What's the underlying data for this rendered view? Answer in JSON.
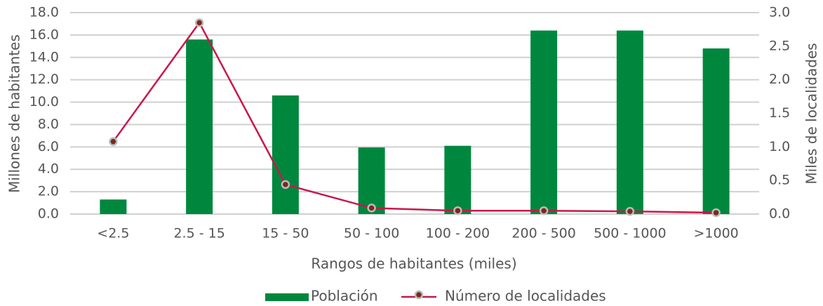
{
  "chart_data": {
    "type": "bar_line",
    "categories": [
      "<2.5",
      "2.5 - 15",
      "15 - 50",
      "50 - 100",
      "100 - 200",
      "200 - 500",
      "500 - 1000",
      ">1000"
    ],
    "series": [
      {
        "name": "Población",
        "color": "#00873e",
        "type": "bar",
        "values": [
          1.3,
          15.6,
          10.6,
          5.95,
          6.1,
          16.4,
          16.4,
          14.8
        ]
      },
      {
        "name": "Número de localidades",
        "color": "#c8174b",
        "type": "line",
        "axis": "y2",
        "values": [
          1.08,
          2.85,
          0.44,
          0.09,
          0.05,
          0.05,
          0.04,
          0.02
        ]
      }
    ],
    "xlabel": "Rangos de habitantes (miles)",
    "ylabel": "Millones de habitantes",
    "y2label": "Miles de localidades",
    "ylim": [
      0,
      18
    ],
    "yticks": [
      {
        "value": 0,
        "label": "0.0"
      },
      {
        "value": 2,
        "label": "2.0"
      },
      {
        "value": 4,
        "label": "4.0"
      },
      {
        "value": 6,
        "label": "6.0"
      },
      {
        "value": 8,
        "label": "8.0"
      },
      {
        "value": 10,
        "label": "10.0"
      },
      {
        "value": 12,
        "label": "12.0"
      },
      {
        "value": 14,
        "label": "14.0"
      },
      {
        "value": 16,
        "label": "16.0"
      },
      {
        "value": 18,
        "label": "18.0"
      }
    ],
    "y2lim": [
      0,
      3
    ],
    "y2ticks": [
      {
        "value": 0,
        "label": "0.0"
      },
      0.5,
      {
        "value": 1,
        "label": "1.0"
      },
      1.5,
      {
        "value": 2,
        "label": "2.0"
      },
      2.5,
      {
        "value": 3,
        "label": "3.0"
      }
    ],
    "grid": true,
    "legend": "bottom"
  }
}
